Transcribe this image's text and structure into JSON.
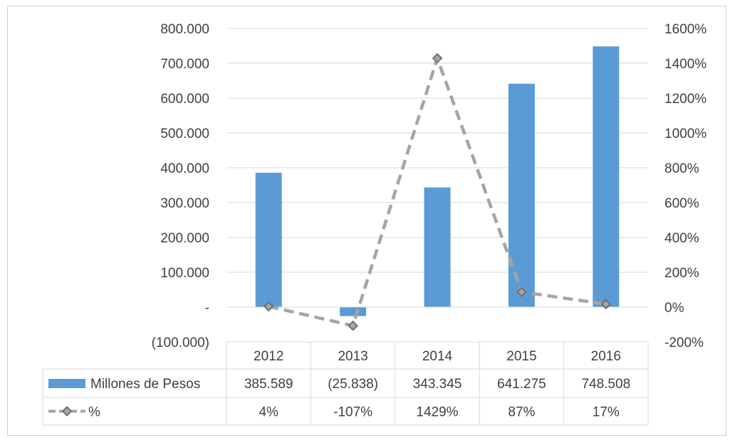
{
  "chart_data": {
    "type": "bar",
    "categories": [
      "2012",
      "2013",
      "2014",
      "2015",
      "2016"
    ],
    "series": [
      {
        "name": "Millones de Pesos",
        "type": "bar",
        "axis": "left",
        "color": "#5b9bd5",
        "values": [
          385589,
          -25838,
          343345,
          641275,
          748508
        ],
        "labels": [
          "385.589",
          "(25.838)",
          "343.345",
          "641.275",
          "748.508"
        ]
      },
      {
        "name": "%",
        "type": "line",
        "axis": "right",
        "color": "#a5a5a5",
        "values": [
          4,
          -107,
          1429,
          87,
          17
        ],
        "labels": [
          "4%",
          "-107%",
          "1429%",
          "87%",
          "17%"
        ]
      }
    ],
    "y_left": {
      "ylim": [
        -100000,
        800000
      ],
      "ticks": [
        -100000,
        0,
        100000,
        200000,
        300000,
        400000,
        500000,
        600000,
        700000,
        800000
      ],
      "tick_labels": [
        "(100.000)",
        "-",
        "100.000",
        "200.000",
        "300.000",
        "400.000",
        "500.000",
        "600.000",
        "700.000",
        "800.000"
      ]
    },
    "y_right": {
      "ylim": [
        -200,
        1600
      ],
      "ticks": [
        -200,
        0,
        200,
        400,
        600,
        800,
        1000,
        1200,
        1400,
        1600
      ],
      "tick_labels": [
        "-200%",
        "0%",
        "200%",
        "400%",
        "600%",
        "800%",
        "1000%",
        "1200%",
        "1400%",
        "1600%"
      ]
    },
    "grid": true,
    "legend": "data-table",
    "title": "",
    "xlabel": "",
    "ylabel": ""
  }
}
